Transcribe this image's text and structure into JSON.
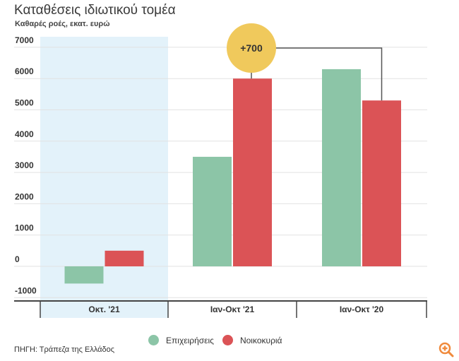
{
  "title": "Καταθέσεις ιδιωτικού τομέα",
  "subtitle": "Καθαρές ροές, εκατ. ευρώ",
  "source": "ΠΗΓΗ: Τράπεζα της Ελλάδος",
  "annotation": "+700",
  "colors": {
    "Επιχειρήσεις": "#8cc5a7",
    "Νοικοκυριά": "#db5356",
    "highlight": "#e3f2fa",
    "annotation": "#f0c95c"
  },
  "chart_data": {
    "type": "bar",
    "title": "Καταθέσεις ιδιωτικού τομέα",
    "subtitle": "Καθαρές ροές, εκατ. ευρώ",
    "categories": [
      "Οκτ. '21",
      "Ιαν-Οκτ '21",
      "Ιαν-Οκτ '20"
    ],
    "series": [
      {
        "name": "Επιχειρήσεις",
        "values": [
          -550,
          3500,
          6300
        ]
      },
      {
        "name": "Νοικοκυριά",
        "values": [
          500,
          6000,
          5300
        ]
      }
    ],
    "yticks": [
      "7000",
      "6000",
      "5000",
      "4000",
      "3000",
      "2000",
      "1000",
      "0",
      "-1000"
    ],
    "ylim": [
      -1000,
      7000
    ],
    "grid": true,
    "legend": "bottom-center",
    "highlighted_category": "Οκτ. '21"
  }
}
